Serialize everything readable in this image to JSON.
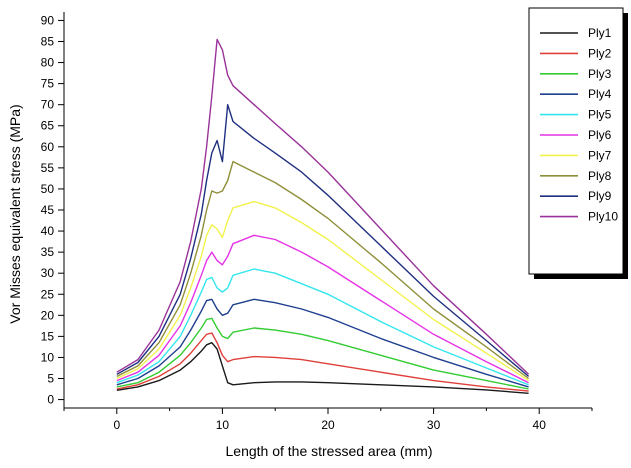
{
  "chart_data": {
    "type": "line",
    "xlabel": "Length of the stressed area (mm)",
    "ylabel": "Vor Misses equivalent stress (MPa)",
    "xlim": [
      -5,
      45
    ],
    "ylim": [
      -2,
      92
    ],
    "xticks": [
      0,
      10,
      20,
      30,
      40
    ],
    "yticks": [
      0,
      5,
      10,
      15,
      20,
      25,
      30,
      35,
      40,
      45,
      50,
      55,
      60,
      65,
      70,
      75,
      80,
      85,
      90
    ],
    "grid": false,
    "legend_position": "top-right",
    "series": [
      {
        "name": "Ply1",
        "color": "#1a1a1a",
        "x": [
          0,
          2,
          4,
          6,
          7,
          8,
          8.5,
          9,
          9.5,
          10,
          10.5,
          11,
          13,
          15,
          17.5,
          20,
          25,
          30,
          35,
          39
        ],
        "y": [
          2.2,
          3.0,
          4.5,
          7.0,
          9.0,
          11.5,
          13.0,
          13.5,
          12.0,
          8.0,
          4.0,
          3.5,
          4.0,
          4.2,
          4.2,
          4.0,
          3.5,
          3.0,
          2.3,
          1.5
        ]
      },
      {
        "name": "Ply2",
        "color": "#e0403a",
        "x": [
          0,
          2,
          4,
          6,
          7,
          8,
          8.5,
          9,
          9.5,
          10,
          10.5,
          11,
          13,
          15,
          17.5,
          20,
          25,
          30,
          35,
          39
        ],
        "y": [
          2.5,
          3.5,
          5.5,
          8.5,
          11.0,
          14.0,
          15.5,
          15.8,
          13.5,
          10.5,
          9.0,
          9.5,
          10.2,
          10.0,
          9.5,
          8.5,
          6.5,
          4.5,
          3.0,
          2.0
        ]
      },
      {
        "name": "Ply3",
        "color": "#33cc33",
        "x": [
          0,
          2,
          4,
          6,
          7,
          8,
          8.5,
          9,
          9.5,
          10,
          10.5,
          11,
          13,
          15,
          17.5,
          20,
          25,
          30,
          35,
          39
        ],
        "y": [
          3.0,
          4.0,
          6.5,
          10.5,
          13.5,
          17.0,
          19.0,
          19.3,
          17.0,
          15.0,
          14.5,
          16.0,
          17.0,
          16.5,
          15.5,
          14.0,
          10.5,
          7.0,
          4.5,
          2.5
        ]
      },
      {
        "name": "Ply4",
        "color": "#1f3f8f",
        "x": [
          0,
          2,
          4,
          6,
          7,
          8,
          8.5,
          9,
          9.5,
          10,
          10.5,
          11,
          13,
          15,
          17.5,
          20,
          25,
          30,
          35,
          39
        ],
        "y": [
          3.5,
          5.0,
          8.0,
          12.5,
          16.5,
          21.0,
          23.5,
          23.8,
          21.5,
          20.0,
          20.5,
          22.5,
          23.8,
          23.0,
          21.5,
          19.5,
          14.5,
          10.0,
          6.0,
          3.0
        ]
      },
      {
        "name": "Ply5",
        "color": "#33e6ee",
        "x": [
          0,
          2,
          4,
          6,
          7,
          8,
          8.5,
          9,
          9.5,
          10,
          10.5,
          11,
          13,
          15,
          17.5,
          20,
          25,
          30,
          35,
          39
        ],
        "y": [
          4.0,
          5.8,
          9.0,
          15.0,
          20.0,
          25.5,
          28.5,
          29.0,
          26.5,
          25.5,
          26.5,
          29.5,
          31.0,
          30.0,
          27.5,
          25.0,
          18.5,
          12.5,
          7.5,
          3.5
        ]
      },
      {
        "name": "Ply6",
        "color": "#e633e6",
        "x": [
          0,
          2,
          4,
          6,
          7,
          8,
          8.5,
          9,
          9.5,
          10,
          10.5,
          11,
          13,
          15,
          17.5,
          20,
          25,
          30,
          35,
          39
        ],
        "y": [
          4.5,
          6.5,
          10.5,
          17.5,
          23.0,
          29.5,
          33.0,
          35.0,
          33.0,
          32.0,
          34.0,
          37.0,
          39.0,
          38.0,
          35.0,
          31.5,
          23.5,
          15.5,
          9.0,
          4.0
        ]
      },
      {
        "name": "Ply7",
        "color": "#f2f24d",
        "x": [
          0,
          2,
          4,
          6,
          7,
          8,
          8.5,
          9,
          9.5,
          10,
          10.5,
          11,
          13,
          15,
          17.5,
          20,
          25,
          30,
          35,
          39
        ],
        "y": [
          5.0,
          7.3,
          12.0,
          20.0,
          26.5,
          34.0,
          39.0,
          41.5,
          40.5,
          38.5,
          42.5,
          45.5,
          47.0,
          45.5,
          42.0,
          38.0,
          28.5,
          19.0,
          11.0,
          4.5
        ]
      },
      {
        "name": "Ply8",
        "color": "#8f8f3a",
        "x": [
          0,
          2,
          4,
          6,
          7,
          8,
          8.5,
          9,
          9.5,
          10,
          10.5,
          11,
          13,
          15,
          17.5,
          20,
          25,
          30,
          35,
          39
        ],
        "y": [
          5.5,
          8.0,
          13.5,
          22.5,
          30.0,
          39.0,
          45.0,
          49.5,
          49.0,
          49.5,
          52.0,
          56.5,
          54.0,
          51.5,
          47.5,
          43.0,
          32.5,
          21.5,
          12.5,
          5.0
        ]
      },
      {
        "name": "Ply9",
        "color": "#1f2f80",
        "x": [
          0,
          2,
          4,
          6,
          7,
          8,
          8.5,
          9,
          9.5,
          10,
          10.5,
          11,
          13,
          15,
          17.5,
          20,
          25,
          30,
          35,
          39
        ],
        "y": [
          6.0,
          8.8,
          15.0,
          25.0,
          33.5,
          44.0,
          52.0,
          58.5,
          61.5,
          56.5,
          70.0,
          66.0,
          62.0,
          58.5,
          54.0,
          48.5,
          36.5,
          24.5,
          14.0,
          5.5
        ]
      },
      {
        "name": "Ply10",
        "color": "#993399",
        "x": [
          0,
          2,
          4,
          6,
          7,
          8,
          8.5,
          9,
          9.5,
          10,
          10.5,
          11,
          13,
          15,
          17.5,
          20,
          25,
          30,
          35,
          39
        ],
        "y": [
          6.5,
          9.5,
          16.5,
          28.0,
          37.5,
          50.0,
          60.0,
          72.0,
          85.5,
          83.0,
          77.0,
          74.5,
          70.0,
          65.5,
          60.0,
          54.0,
          40.5,
          27.0,
          15.5,
          6.0
        ]
      }
    ]
  }
}
